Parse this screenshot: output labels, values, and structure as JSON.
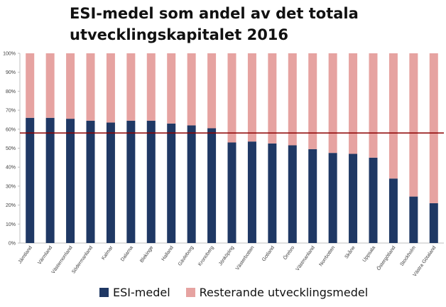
{
  "title_line1": "ESI-medel som andel av det totala",
  "title_line2": "utvecklingskapitalet 2016",
  "chart_data": {
    "type": "bar",
    "stacked": true,
    "percent_stacked": true,
    "categories": [
      "Jämtland",
      "Värmland",
      "Västernorrland",
      "Södermanland",
      "Kalmar",
      "Dalarna",
      "Blekinge",
      "Halland",
      "Gävleborg",
      "Kronoberg",
      "Jönköping",
      "Västerbotten",
      "Gotland",
      "Örebro",
      "Västmanland",
      "Norrbotten",
      "Skåne",
      "Uppsala",
      "Östergötland",
      "Stockholm",
      "Västra Götaland"
    ],
    "series": [
      {
        "name": "ESI-medel",
        "color": "#1f3864",
        "values": [
          66,
          66,
          65.5,
          64.5,
          63.5,
          64.5,
          64.5,
          63,
          62,
          60.5,
          53,
          53.5,
          52.5,
          51.5,
          49.5,
          47.5,
          47,
          45,
          34,
          24.5,
          21
        ]
      },
      {
        "name": "Resterande utvecklingsmedel",
        "color": "#e6a3a1",
        "values": [
          34,
          34,
          34.5,
          35.5,
          36.5,
          35.5,
          35.5,
          37,
          38,
          39.5,
          47,
          46.5,
          47.5,
          48.5,
          50.5,
          52.5,
          53,
          55,
          66,
          75.5,
          79
        ]
      }
    ],
    "yticks": [
      "0%",
      "10%",
      "20%",
      "30%",
      "40%",
      "50%",
      "60%",
      "70%",
      "80%",
      "90%",
      "100%"
    ],
    "ylim": [
      0,
      100
    ],
    "reference_line": {
      "value": 58,
      "color": "#8b0000"
    },
    "legend_position": "bottom",
    "grid": false
  }
}
